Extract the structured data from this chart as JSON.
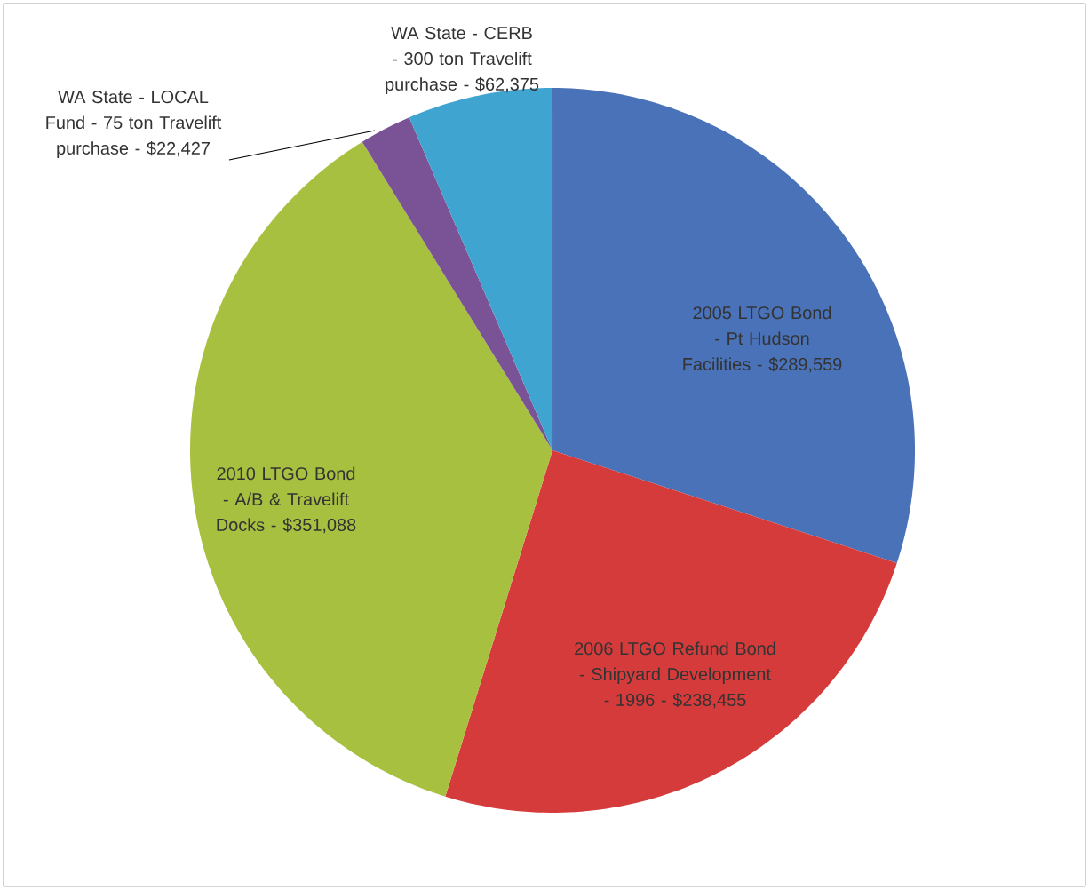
{
  "chart_data": {
    "type": "pie",
    "categories": [
      "2005 LTGO Bond - Pt Hudson Facilities -",
      "2006 LTGO Refund Bond - Shipyard Development - 1996 -",
      "2010 LTGO Bond - A/B & Travelift Docks -",
      "WA State - LOCAL Fund - 75 ton Travelift purchase -",
      "WA State - CERB - 300 ton Travelift purchase -"
    ],
    "values": [
      289559,
      238455,
      351088,
      22427,
      62375
    ],
    "value_labels": [
      "$289,559",
      "$238,455",
      "$351,088",
      "$22,427",
      "$62,375"
    ],
    "colors": [
      "#4a72b8",
      "#d63b3b",
      "#a8c040",
      "#7a5296",
      "#3fa4d0"
    ]
  }
}
